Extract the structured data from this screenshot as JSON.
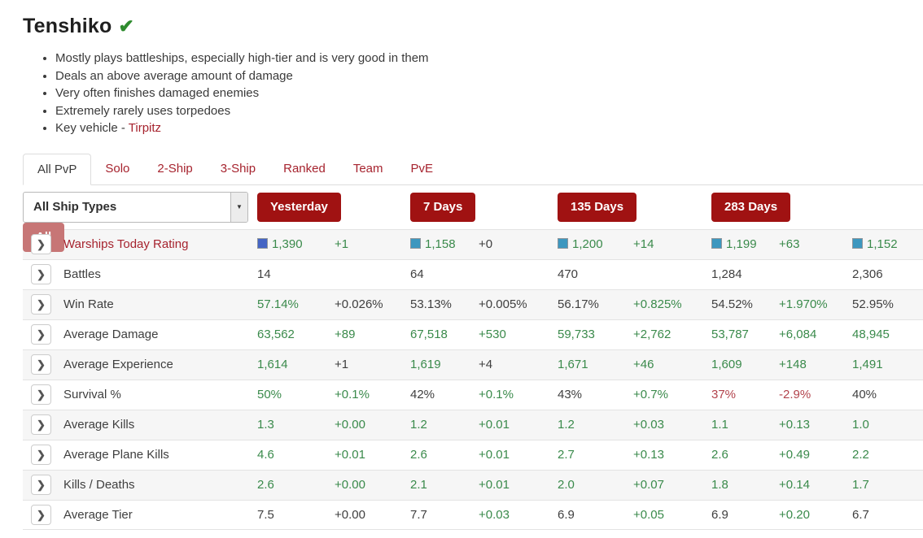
{
  "header": {
    "title": "Tenshiko",
    "verified_badge": "verified"
  },
  "icons": {
    "verified_check": "✔",
    "chevron_right": "❯",
    "dropdown_arrow": "▼"
  },
  "notes": {
    "bullets": [
      "Mostly plays battleships, especially high-tier and is very good in them",
      "Deals an above average amount of damage",
      "Very often finishes damaged enemies",
      "Extremely rarely uses torpedoes"
    ],
    "key_vehicle_prefix": "Key vehicle - ",
    "key_vehicle_link": "Tirpitz"
  },
  "tabs": [
    {
      "label": "All PvP",
      "active": true
    },
    {
      "label": "Solo",
      "active": false
    },
    {
      "label": "2-Ship",
      "active": false
    },
    {
      "label": "3-Ship",
      "active": false
    },
    {
      "label": "Ranked",
      "active": false
    },
    {
      "label": "Team",
      "active": false
    },
    {
      "label": "PvE",
      "active": false
    }
  ],
  "filters": {
    "ship_type_selected": "All Ship Types",
    "periods": [
      {
        "label": "Yesterday",
        "muted": false
      },
      {
        "label": "7 Days",
        "muted": false
      },
      {
        "label": "135 Days",
        "muted": false
      },
      {
        "label": "283 Days",
        "muted": false
      },
      {
        "label": "All",
        "muted": true
      }
    ]
  },
  "colors": {
    "green": "#3a8a4b",
    "black": "#3f3f3f",
    "red": "#b2434c",
    "label_red": "#a6232e",
    "button_red": "#a01212",
    "button_muted": "#c77676",
    "square_blue": "#4565c4",
    "square_teal": "#3d97bf",
    "check_green": "#2e8b2e"
  },
  "table": {
    "rows": [
      {
        "label": "Warships Today Rating",
        "label_style": "red",
        "cells": [
          {
            "text": "1,390",
            "style": "green",
            "square": "square_blue"
          },
          {
            "text": "+1",
            "style": "green"
          },
          {
            "text": "1,158",
            "style": "green",
            "square": "square_teal"
          },
          {
            "text": "+0",
            "style": "black"
          },
          {
            "text": "1,200",
            "style": "green",
            "square": "square_teal"
          },
          {
            "text": "+14",
            "style": "green"
          },
          {
            "text": "1,199",
            "style": "green",
            "square": "square_teal"
          },
          {
            "text": "+63",
            "style": "green"
          },
          {
            "text": "1,152",
            "style": "green",
            "square": "square_teal"
          }
        ]
      },
      {
        "label": "Battles",
        "label_style": "",
        "cells": [
          {
            "text": "14",
            "style": "black"
          },
          {
            "text": "",
            "style": "black"
          },
          {
            "text": "64",
            "style": "black"
          },
          {
            "text": "",
            "style": "black"
          },
          {
            "text": "470",
            "style": "black"
          },
          {
            "text": "",
            "style": "black"
          },
          {
            "text": "1,284",
            "style": "black"
          },
          {
            "text": "",
            "style": "black"
          },
          {
            "text": "2,306",
            "style": "black"
          }
        ]
      },
      {
        "label": "Win Rate",
        "label_style": "",
        "cells": [
          {
            "text": "57.14%",
            "style": "green"
          },
          {
            "text": "+0.026%",
            "style": "black"
          },
          {
            "text": "53.13%",
            "style": "black"
          },
          {
            "text": "+0.005%",
            "style": "black"
          },
          {
            "text": "56.17%",
            "style": "black"
          },
          {
            "text": "+0.825%",
            "style": "green"
          },
          {
            "text": "54.52%",
            "style": "black"
          },
          {
            "text": "+1.970%",
            "style": "green"
          },
          {
            "text": "52.95%",
            "style": "black"
          }
        ]
      },
      {
        "label": "Average Damage",
        "label_style": "",
        "cells": [
          {
            "text": "63,562",
            "style": "green"
          },
          {
            "text": "+89",
            "style": "green"
          },
          {
            "text": "67,518",
            "style": "green"
          },
          {
            "text": "+530",
            "style": "green"
          },
          {
            "text": "59,733",
            "style": "green"
          },
          {
            "text": "+2,762",
            "style": "green"
          },
          {
            "text": "53,787",
            "style": "green"
          },
          {
            "text": "+6,084",
            "style": "green"
          },
          {
            "text": "48,945",
            "style": "green"
          }
        ]
      },
      {
        "label": "Average Experience",
        "label_style": "",
        "cells": [
          {
            "text": "1,614",
            "style": "green"
          },
          {
            "text": "+1",
            "style": "black"
          },
          {
            "text": "1,619",
            "style": "green"
          },
          {
            "text": "+4",
            "style": "black"
          },
          {
            "text": "1,671",
            "style": "green"
          },
          {
            "text": "+46",
            "style": "green"
          },
          {
            "text": "1,609",
            "style": "green"
          },
          {
            "text": "+148",
            "style": "green"
          },
          {
            "text": "1,491",
            "style": "green"
          }
        ]
      },
      {
        "label": "Survival %",
        "label_style": "",
        "cells": [
          {
            "text": "50%",
            "style": "green"
          },
          {
            "text": "+0.1%",
            "style": "green"
          },
          {
            "text": "42%",
            "style": "black"
          },
          {
            "text": "+0.1%",
            "style": "green"
          },
          {
            "text": "43%",
            "style": "black"
          },
          {
            "text": "+0.7%",
            "style": "green"
          },
          {
            "text": "37%",
            "style": "red"
          },
          {
            "text": "-2.9%",
            "style": "red"
          },
          {
            "text": "40%",
            "style": "black"
          }
        ]
      },
      {
        "label": "Average Kills",
        "label_style": "",
        "cells": [
          {
            "text": "1.3",
            "style": "green"
          },
          {
            "text": "+0.00",
            "style": "green"
          },
          {
            "text": "1.2",
            "style": "green"
          },
          {
            "text": "+0.01",
            "style": "green"
          },
          {
            "text": "1.2",
            "style": "green"
          },
          {
            "text": "+0.03",
            "style": "green"
          },
          {
            "text": "1.1",
            "style": "green"
          },
          {
            "text": "+0.13",
            "style": "green"
          },
          {
            "text": "1.0",
            "style": "green"
          }
        ]
      },
      {
        "label": "Average Plane Kills",
        "label_style": "",
        "cells": [
          {
            "text": "4.6",
            "style": "green"
          },
          {
            "text": "+0.01",
            "style": "green"
          },
          {
            "text": "2.6",
            "style": "green"
          },
          {
            "text": "+0.01",
            "style": "green"
          },
          {
            "text": "2.7",
            "style": "green"
          },
          {
            "text": "+0.13",
            "style": "green"
          },
          {
            "text": "2.6",
            "style": "green"
          },
          {
            "text": "+0.49",
            "style": "green"
          },
          {
            "text": "2.2",
            "style": "green"
          }
        ]
      },
      {
        "label": "Kills / Deaths",
        "label_style": "",
        "cells": [
          {
            "text": "2.6",
            "style": "green"
          },
          {
            "text": "+0.00",
            "style": "green"
          },
          {
            "text": "2.1",
            "style": "green"
          },
          {
            "text": "+0.01",
            "style": "green"
          },
          {
            "text": "2.0",
            "style": "green"
          },
          {
            "text": "+0.07",
            "style": "green"
          },
          {
            "text": "1.8",
            "style": "green"
          },
          {
            "text": "+0.14",
            "style": "green"
          },
          {
            "text": "1.7",
            "style": "green"
          }
        ]
      },
      {
        "label": "Average Tier",
        "label_style": "",
        "cells": [
          {
            "text": "7.5",
            "style": "black"
          },
          {
            "text": "+0.00",
            "style": "black"
          },
          {
            "text": "7.7",
            "style": "black"
          },
          {
            "text": "+0.03",
            "style": "green"
          },
          {
            "text": "6.9",
            "style": "black"
          },
          {
            "text": "+0.05",
            "style": "green"
          },
          {
            "text": "6.9",
            "style": "black"
          },
          {
            "text": "+0.20",
            "style": "green"
          },
          {
            "text": "6.7",
            "style": "black"
          }
        ]
      }
    ]
  }
}
